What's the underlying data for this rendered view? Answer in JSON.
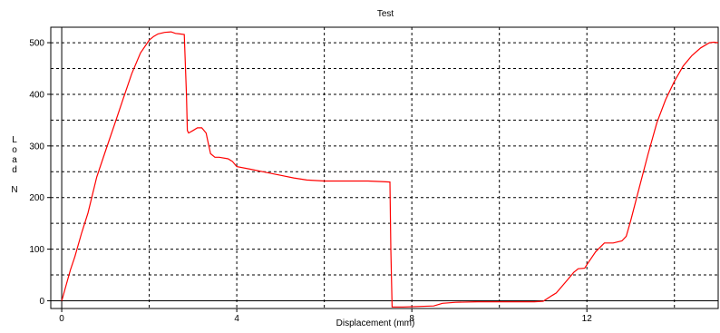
{
  "chart_data": {
    "type": "line",
    "title": "Test",
    "xlabel": "Displacement (mm)",
    "ylabel_lines": [
      "L",
      "o",
      "a",
      "d",
      "",
      "N"
    ],
    "xlim": [
      -0.25,
      15
    ],
    "ylim": [
      -15,
      530
    ],
    "x_ticks": [
      0,
      4,
      8,
      12
    ],
    "y_ticks": [
      0,
      100,
      200,
      300,
      400,
      500
    ],
    "x_grid": [
      2,
      4,
      6,
      8,
      10,
      12,
      14
    ],
    "y_grid": [
      50,
      100,
      150,
      200,
      250,
      300,
      350,
      400,
      450,
      500
    ],
    "grid": true,
    "line_color": "#ff0000",
    "series": [
      {
        "x": [
          0,
          0.1,
          0.2,
          0.3,
          0.45,
          0.6,
          0.8,
          1.0,
          1.2,
          1.4,
          1.6,
          1.8,
          2.0,
          2.1,
          2.2,
          2.35,
          2.5,
          2.6,
          2.7,
          2.8,
          2.85,
          2.87,
          2.9,
          3.0,
          3.1,
          3.2,
          3.3,
          3.35,
          3.4,
          3.5,
          3.6,
          3.8,
          3.9,
          4.0,
          4.3,
          4.6,
          5.0,
          5.3,
          5.6,
          6.0,
          6.5,
          7.0,
          7.3,
          7.5,
          7.52,
          7.55,
          7.8,
          8.2,
          8.5,
          8.7,
          9.0,
          9.5,
          10.0,
          10.5,
          10.8,
          11.0,
          11.2,
          11.3,
          11.5,
          11.7,
          11.8,
          11.95,
          12.0,
          12.2,
          12.4,
          12.6,
          12.8,
          12.9,
          13.0,
          13.2,
          13.4,
          13.6,
          13.8,
          14.0,
          14.2,
          14.4,
          14.6,
          14.8,
          14.9,
          15.0
        ],
        "y": [
          0,
          30,
          60,
          85,
          130,
          170,
          240,
          290,
          340,
          390,
          440,
          480,
          505,
          512,
          517,
          520,
          521,
          518,
          517,
          516,
          400,
          330,
          325,
          330,
          335,
          335,
          325,
          305,
          285,
          278,
          278,
          275,
          270,
          260,
          255,
          250,
          243,
          238,
          234,
          232,
          232,
          232,
          231,
          230,
          100,
          -12,
          -12,
          -11,
          -10,
          -5,
          -3,
          -2,
          -2,
          -2,
          -2,
          -1,
          10,
          15,
          35,
          55,
          62,
          63,
          70,
          95,
          112,
          112,
          116,
          125,
          155,
          220,
          285,
          345,
          390,
          425,
          455,
          475,
          490,
          500,
          501,
          500
        ]
      }
    ]
  }
}
